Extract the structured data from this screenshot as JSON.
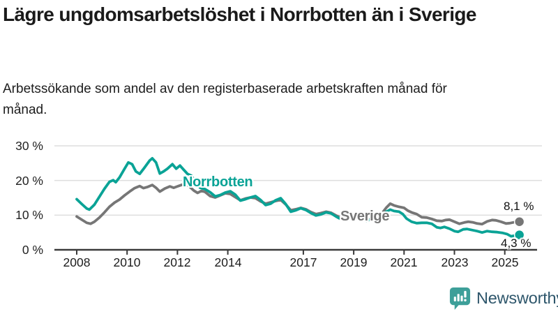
{
  "header": {
    "title": "Lägre ungdomsarbetslöshet i Norrbotten än i Sverige",
    "subtitle": "Arbetssökande som andel av den registerbaserade arbetskraften månad för månad."
  },
  "chart_data": {
    "type": "line",
    "title": "Lägre ungdomsarbetslöshet i Norrbotten än i Sverige",
    "xlabel": "",
    "ylabel": "%",
    "xlim": [
      2007.6,
      2025.9
    ],
    "ylim": [
      0,
      30
    ],
    "grid": "horizontal",
    "legend_position": "inline-labels",
    "x_ticks": [
      2008,
      2010,
      2012,
      2014,
      2017,
      2019,
      2021,
      2023,
      2025
    ],
    "x_tick_labels": [
      "2008",
      "2010",
      "2012",
      "2014",
      "2017",
      "2019",
      "2021",
      "2023",
      "2025"
    ],
    "y_ticks": [
      0,
      10,
      20,
      30
    ],
    "y_tick_labels": [
      "0 %",
      "10 %",
      "20 %",
      "30 %"
    ],
    "colors": {
      "norrbotten": "#0aa396",
      "sverige": "#767676",
      "grid": "#dedede",
      "axis": "#3a3a3a"
    },
    "series": [
      {
        "name": "Sverige",
        "color": "#767676",
        "end_value": 8.1,
        "end_label": "8,1 %",
        "points": [
          [
            2008.0,
            9.6
          ],
          [
            2008.2,
            8.7
          ],
          [
            2008.4,
            7.8
          ],
          [
            2008.55,
            7.5
          ],
          [
            2008.7,
            8.1
          ],
          [
            2008.9,
            9.3
          ],
          [
            2009.1,
            10.8
          ],
          [
            2009.3,
            12.4
          ],
          [
            2009.5,
            13.6
          ],
          [
            2009.7,
            14.5
          ],
          [
            2009.9,
            15.7
          ],
          [
            2010.1,
            16.8
          ],
          [
            2010.3,
            17.8
          ],
          [
            2010.5,
            18.4
          ],
          [
            2010.65,
            17.8
          ],
          [
            2010.8,
            18.1
          ],
          [
            2011.0,
            18.7
          ],
          [
            2011.15,
            17.9
          ],
          [
            2011.3,
            16.8
          ],
          [
            2011.5,
            17.7
          ],
          [
            2011.7,
            18.3
          ],
          [
            2011.85,
            17.9
          ],
          [
            2012.0,
            18.3
          ],
          [
            2012.2,
            18.8
          ],
          [
            2012.35,
            18.9
          ],
          [
            2012.5,
            18.1
          ],
          [
            2012.65,
            17.1
          ],
          [
            2012.8,
            16.4
          ],
          [
            2012.95,
            17.0
          ],
          [
            2013.1,
            16.7
          ],
          [
            2013.3,
            15.5
          ],
          [
            2013.5,
            15.1
          ],
          [
            2013.7,
            15.7
          ],
          [
            2013.9,
            16.3
          ],
          [
            2014.1,
            16.1
          ],
          [
            2014.3,
            15.2
          ],
          [
            2014.5,
            14.3
          ],
          [
            2014.7,
            14.8
          ],
          [
            2014.9,
            15.1
          ],
          [
            2015.1,
            14.9
          ],
          [
            2015.3,
            14.0
          ],
          [
            2015.5,
            13.3
          ],
          [
            2015.7,
            13.7
          ],
          [
            2015.9,
            14.1
          ],
          [
            2016.1,
            14.4
          ],
          [
            2016.3,
            13.1
          ],
          [
            2016.5,
            11.4
          ],
          [
            2016.7,
            11.7
          ],
          [
            2016.9,
            12.1
          ],
          [
            2017.1,
            11.7
          ],
          [
            2017.3,
            10.9
          ],
          [
            2017.5,
            10.3
          ],
          [
            2017.7,
            10.6
          ],
          [
            2017.9,
            11.0
          ],
          [
            2018.1,
            10.7
          ],
          [
            2018.3,
            9.9
          ],
          [
            2018.5,
            9.2
          ],
          [
            2018.7,
            9.4
          ],
          [
            2018.9,
            9.6
          ],
          [
            2019.1,
            9.3
          ],
          [
            2019.3,
            8.9
          ],
          [
            2019.5,
            8.6
          ],
          [
            2019.7,
            9.0
          ],
          [
            2019.9,
            9.5
          ],
          [
            2020.1,
            10.3
          ],
          [
            2020.3,
            12.2
          ],
          [
            2020.45,
            13.3
          ],
          [
            2020.6,
            12.8
          ],
          [
            2020.8,
            12.4
          ],
          [
            2021.0,
            12.1
          ],
          [
            2021.15,
            11.3
          ],
          [
            2021.3,
            10.8
          ],
          [
            2021.5,
            10.3
          ],
          [
            2021.7,
            9.4
          ],
          [
            2021.9,
            9.3
          ],
          [
            2022.1,
            8.9
          ],
          [
            2022.3,
            8.4
          ],
          [
            2022.5,
            8.3
          ],
          [
            2022.65,
            8.6
          ],
          [
            2022.8,
            8.7
          ],
          [
            2023.0,
            8.1
          ],
          [
            2023.2,
            7.5
          ],
          [
            2023.4,
            7.9
          ],
          [
            2023.55,
            8.1
          ],
          [
            2023.75,
            7.9
          ],
          [
            2023.9,
            7.6
          ],
          [
            2024.1,
            7.4
          ],
          [
            2024.3,
            8.2
          ],
          [
            2024.5,
            8.6
          ],
          [
            2024.65,
            8.5
          ],
          [
            2024.85,
            8.1
          ],
          [
            2025.05,
            7.6
          ],
          [
            2025.2,
            7.7
          ],
          [
            2025.4,
            8.0
          ],
          [
            2025.58,
            8.1
          ]
        ]
      },
      {
        "name": "Norrbotten",
        "color": "#0aa396",
        "end_value": 4.3,
        "end_label": "4,3 %",
        "points": [
          [
            2008.0,
            14.6
          ],
          [
            2008.2,
            13.2
          ],
          [
            2008.4,
            11.9
          ],
          [
            2008.5,
            11.6
          ],
          [
            2008.7,
            13.0
          ],
          [
            2008.9,
            15.3
          ],
          [
            2009.1,
            17.6
          ],
          [
            2009.3,
            19.6
          ],
          [
            2009.45,
            20.1
          ],
          [
            2009.55,
            19.5
          ],
          [
            2009.7,
            20.9
          ],
          [
            2009.9,
            23.4
          ],
          [
            2010.05,
            25.2
          ],
          [
            2010.2,
            24.7
          ],
          [
            2010.35,
            22.6
          ],
          [
            2010.5,
            21.9
          ],
          [
            2010.7,
            23.8
          ],
          [
            2010.9,
            25.8
          ],
          [
            2011.0,
            26.4
          ],
          [
            2011.15,
            25.2
          ],
          [
            2011.3,
            22.0
          ],
          [
            2011.45,
            22.6
          ],
          [
            2011.6,
            23.4
          ],
          [
            2011.8,
            24.7
          ],
          [
            2011.95,
            23.4
          ],
          [
            2012.1,
            24.3
          ],
          [
            2012.25,
            23.1
          ],
          [
            2012.4,
            21.9
          ],
          [
            2012.55,
            21.4
          ],
          [
            2012.7,
            19.8
          ],
          [
            2012.9,
            17.9
          ],
          [
            2013.1,
            17.5
          ],
          [
            2013.3,
            16.6
          ],
          [
            2013.5,
            15.4
          ],
          [
            2013.7,
            15.8
          ],
          [
            2013.9,
            16.5
          ],
          [
            2014.1,
            16.9
          ],
          [
            2014.3,
            15.9
          ],
          [
            2014.5,
            14.2
          ],
          [
            2014.7,
            14.6
          ],
          [
            2014.9,
            15.1
          ],
          [
            2015.1,
            15.5
          ],
          [
            2015.3,
            14.4
          ],
          [
            2015.5,
            12.9
          ],
          [
            2015.7,
            13.3
          ],
          [
            2015.9,
            14.3
          ],
          [
            2016.1,
            14.9
          ],
          [
            2016.3,
            13.2
          ],
          [
            2016.5,
            11.0
          ],
          [
            2016.7,
            11.4
          ],
          [
            2016.9,
            12.0
          ],
          [
            2017.1,
            11.5
          ],
          [
            2017.3,
            10.6
          ],
          [
            2017.5,
            9.9
          ],
          [
            2017.7,
            10.2
          ],
          [
            2017.9,
            10.8
          ],
          [
            2018.1,
            10.5
          ],
          [
            2018.3,
            9.6
          ],
          [
            2018.5,
            8.8
          ],
          [
            2018.7,
            9.0
          ],
          [
            2018.9,
            9.4
          ],
          [
            2019.1,
            9.1
          ],
          [
            2019.3,
            8.7
          ],
          [
            2019.5,
            8.4
          ],
          [
            2019.7,
            8.8
          ],
          [
            2019.9,
            9.3
          ],
          [
            2020.1,
            9.9
          ],
          [
            2020.3,
            11.0
          ],
          [
            2020.45,
            11.6
          ],
          [
            2020.6,
            11.2
          ],
          [
            2020.8,
            11.0
          ],
          [
            2020.95,
            10.3
          ],
          [
            2021.1,
            9.0
          ],
          [
            2021.3,
            8.1
          ],
          [
            2021.5,
            7.7
          ],
          [
            2021.7,
            7.8
          ],
          [
            2021.9,
            7.8
          ],
          [
            2022.1,
            7.5
          ],
          [
            2022.3,
            6.5
          ],
          [
            2022.45,
            6.3
          ],
          [
            2022.6,
            6.6
          ],
          [
            2022.8,
            6.1
          ],
          [
            2023.0,
            5.4
          ],
          [
            2023.15,
            5.2
          ],
          [
            2023.35,
            5.9
          ],
          [
            2023.5,
            6.0
          ],
          [
            2023.7,
            5.7
          ],
          [
            2023.9,
            5.4
          ],
          [
            2024.1,
            5.0
          ],
          [
            2024.3,
            5.4
          ],
          [
            2024.5,
            5.2
          ],
          [
            2024.7,
            5.1
          ],
          [
            2024.9,
            4.9
          ],
          [
            2025.1,
            4.5
          ],
          [
            2025.25,
            3.9
          ],
          [
            2025.4,
            4.1
          ],
          [
            2025.58,
            4.3
          ]
        ]
      }
    ]
  },
  "footer": {
    "brand": "Newsworthy",
    "brand_color": "#2e566b",
    "icon": "bar-chart-speech-bubble",
    "icon_color": "#3d9f99"
  }
}
